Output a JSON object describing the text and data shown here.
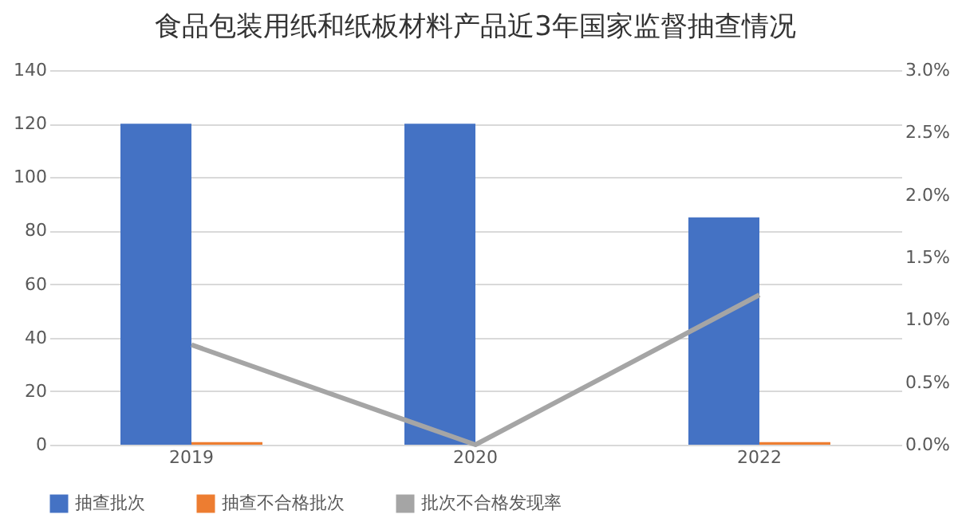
{
  "chart_data": {
    "type": "bar",
    "title": "食品包装用纸和纸板材料产品近3年国家监督抽查情况",
    "categories": [
      "2019",
      "2020",
      "2022"
    ],
    "series": [
      {
        "name": "抽查批次",
        "color": "#4472c4",
        "values": [
          120,
          120,
          85
        ]
      },
      {
        "name": "抽查不合格批次",
        "color": "#ed7d31",
        "values": [
          1,
          0,
          1
        ]
      },
      {
        "name": "批次不合格发现率",
        "type": "line",
        "axis": "y2",
        "color": "#a5a5a5",
        "values": [
          0.8,
          0,
          1.2
        ]
      }
    ],
    "ylim": [
      0,
      140
    ],
    "yticks": [
      0,
      20,
      40,
      60,
      80,
      100,
      120,
      140
    ],
    "y2lim": [
      0,
      3
    ],
    "y2ticks": [
      {
        "value": 0,
        "label": "0.0%"
      },
      {
        "value": 0.5,
        "label": "0.5%"
      },
      {
        "value": 1,
        "label": "1.0%"
      },
      {
        "value": 1.5,
        "label": "1.5%"
      },
      {
        "value": 2,
        "label": "2.0%"
      },
      {
        "value": 2.5,
        "label": "2.5%"
      },
      {
        "value": 3,
        "label": "3.0%"
      }
    ],
    "grid": "y",
    "legend": "bottom"
  }
}
